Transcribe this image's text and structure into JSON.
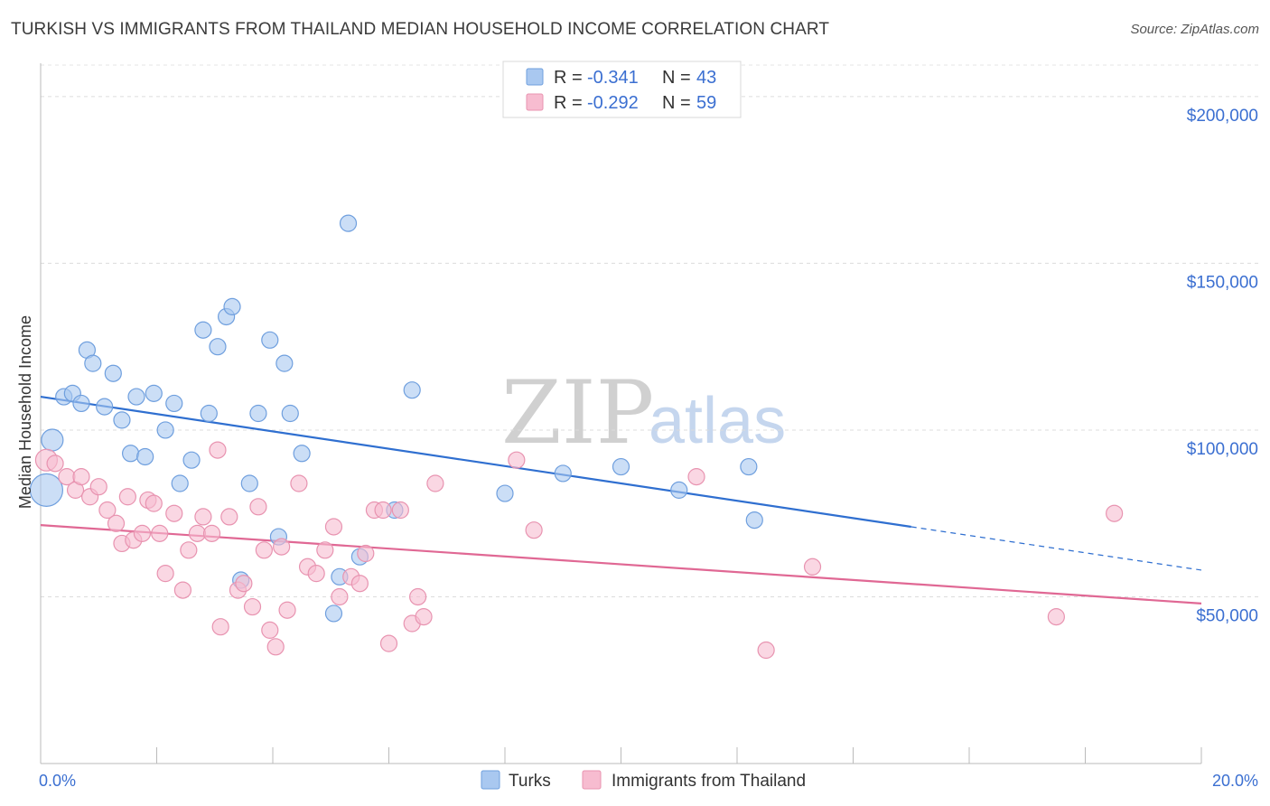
{
  "header": {
    "title": "TURKISH VS IMMIGRANTS FROM THAILAND MEDIAN HOUSEHOLD INCOME CORRELATION CHART",
    "source": "Source: ZipAtlas.com"
  },
  "legend_stats": [
    {
      "r_label": "R = ",
      "r_value": "-0.341",
      "n_label": "N = ",
      "n_value": "43",
      "color": "#a9c8f0",
      "stroke": "#6f9fde"
    },
    {
      "r_label": "R = ",
      "r_value": "-0.292",
      "n_label": "N = ",
      "n_value": "59",
      "color": "#f7bcd0",
      "stroke": "#e893b0"
    }
  ],
  "watermark": {
    "zip": "ZIP",
    "atlas": "atlas"
  },
  "chart_data": {
    "type": "scatter",
    "ylabel": "Median Household Income",
    "xlim": [
      0,
      20
    ],
    "ylim": [
      0,
      210000
    ],
    "x_tick_labels": [
      "0.0%",
      "20.0%"
    ],
    "y_ticks": [
      {
        "value": 50000,
        "label": "$50,000"
      },
      {
        "value": 100000,
        "label": "$100,000"
      },
      {
        "value": 150000,
        "label": "$150,000"
      },
      {
        "value": 200000,
        "label": "$200,000"
      }
    ],
    "grid": "horizontal dashed",
    "series": [
      {
        "name": "Turks",
        "color": "#a9c8f0",
        "stroke": "#6f9fde",
        "line_color": "#2f6fd0",
        "trend": {
          "x0": 0,
          "y0": 110000,
          "x1": 15.0,
          "y1": 71000,
          "x_dash_end": 20.0,
          "y_dash_end": 58000
        },
        "points": [
          [
            0.1,
            82000,
            18
          ],
          [
            0.2,
            97000,
            12
          ],
          [
            0.4,
            110000,
            9
          ],
          [
            0.55,
            111000,
            9
          ],
          [
            0.7,
            108000,
            9
          ],
          [
            0.8,
            124000,
            9
          ],
          [
            0.9,
            120000,
            9
          ],
          [
            1.1,
            107000,
            9
          ],
          [
            1.25,
            117000,
            9
          ],
          [
            1.4,
            103000,
            9
          ],
          [
            1.55,
            93000,
            9
          ],
          [
            1.65,
            110000,
            9
          ],
          [
            1.8,
            92000,
            9
          ],
          [
            1.95,
            111000,
            9
          ],
          [
            2.15,
            100000,
            9
          ],
          [
            2.3,
            108000,
            9
          ],
          [
            2.4,
            84000,
            9
          ],
          [
            2.6,
            91000,
            9
          ],
          [
            2.8,
            130000,
            9
          ],
          [
            2.9,
            105000,
            9
          ],
          [
            3.05,
            125000,
            9
          ],
          [
            3.2,
            134000,
            9
          ],
          [
            3.3,
            137000,
            9
          ],
          [
            3.45,
            55000,
            9
          ],
          [
            3.6,
            84000,
            9
          ],
          [
            3.75,
            105000,
            9
          ],
          [
            3.95,
            127000,
            9
          ],
          [
            4.1,
            68000,
            9
          ],
          [
            4.2,
            120000,
            9
          ],
          [
            4.3,
            105000,
            9
          ],
          [
            4.5,
            93000,
            9
          ],
          [
            5.05,
            45000,
            9
          ],
          [
            5.15,
            56000,
            9
          ],
          [
            5.3,
            162000,
            9
          ],
          [
            5.5,
            62000,
            9
          ],
          [
            6.1,
            76000,
            9
          ],
          [
            6.4,
            112000,
            9
          ],
          [
            8.0,
            81000,
            9
          ],
          [
            9.0,
            87000,
            9
          ],
          [
            10.0,
            89000,
            9
          ],
          [
            11.0,
            82000,
            9
          ],
          [
            12.2,
            89000,
            9
          ],
          [
            12.3,
            73000,
            9
          ]
        ]
      },
      {
        "name": "Immigrants from Thailand",
        "color": "#f7bcd0",
        "stroke": "#e893b0",
        "line_color": "#e06894",
        "trend": {
          "x0": 0,
          "y0": 71500,
          "x1": 20.0,
          "y1": 48000
        },
        "points": [
          [
            0.1,
            91000,
            12
          ],
          [
            0.25,
            90000,
            9
          ],
          [
            0.45,
            86000,
            9
          ],
          [
            0.6,
            82000,
            9
          ],
          [
            0.7,
            86000,
            9
          ],
          [
            0.85,
            80000,
            9
          ],
          [
            1.0,
            83000,
            9
          ],
          [
            1.15,
            76000,
            9
          ],
          [
            1.3,
            72000,
            9
          ],
          [
            1.4,
            66000,
            9
          ],
          [
            1.5,
            80000,
            9
          ],
          [
            1.6,
            67000,
            9
          ],
          [
            1.75,
            69000,
            9
          ],
          [
            1.85,
            79000,
            9
          ],
          [
            1.95,
            78000,
            9
          ],
          [
            2.05,
            69000,
            9
          ],
          [
            2.15,
            57000,
            9
          ],
          [
            2.3,
            75000,
            9
          ],
          [
            2.45,
            52000,
            9
          ],
          [
            2.55,
            64000,
            9
          ],
          [
            2.7,
            69000,
            9
          ],
          [
            2.8,
            74000,
            9
          ],
          [
            2.95,
            69000,
            9
          ],
          [
            3.05,
            94000,
            9
          ],
          [
            3.1,
            41000,
            9
          ],
          [
            3.25,
            74000,
            9
          ],
          [
            3.4,
            52000,
            9
          ],
          [
            3.5,
            54000,
            9
          ],
          [
            3.65,
            47000,
            9
          ],
          [
            3.75,
            77000,
            9
          ],
          [
            3.85,
            64000,
            9
          ],
          [
            3.95,
            40000,
            9
          ],
          [
            4.05,
            35000,
            9
          ],
          [
            4.15,
            65000,
            9
          ],
          [
            4.25,
            46000,
            9
          ],
          [
            4.45,
            84000,
            9
          ],
          [
            4.6,
            59000,
            9
          ],
          [
            4.75,
            57000,
            9
          ],
          [
            4.9,
            64000,
            9
          ],
          [
            5.05,
            71000,
            9
          ],
          [
            5.15,
            50000,
            9
          ],
          [
            5.35,
            56000,
            9
          ],
          [
            5.5,
            54000,
            9
          ],
          [
            5.6,
            63000,
            9
          ],
          [
            5.75,
            76000,
            9
          ],
          [
            5.9,
            76000,
            9
          ],
          [
            6.0,
            36000,
            9
          ],
          [
            6.2,
            76000,
            9
          ],
          [
            6.4,
            42000,
            9
          ],
          [
            6.5,
            50000,
            9
          ],
          [
            6.6,
            44000,
            9
          ],
          [
            6.8,
            84000,
            9
          ],
          [
            8.2,
            91000,
            9
          ],
          [
            8.5,
            70000,
            9
          ],
          [
            11.3,
            86000,
            9
          ],
          [
            12.5,
            34000,
            9
          ],
          [
            13.3,
            59000,
            9
          ],
          [
            17.5,
            44000,
            9
          ],
          [
            18.5,
            75000,
            9
          ]
        ]
      }
    ]
  }
}
